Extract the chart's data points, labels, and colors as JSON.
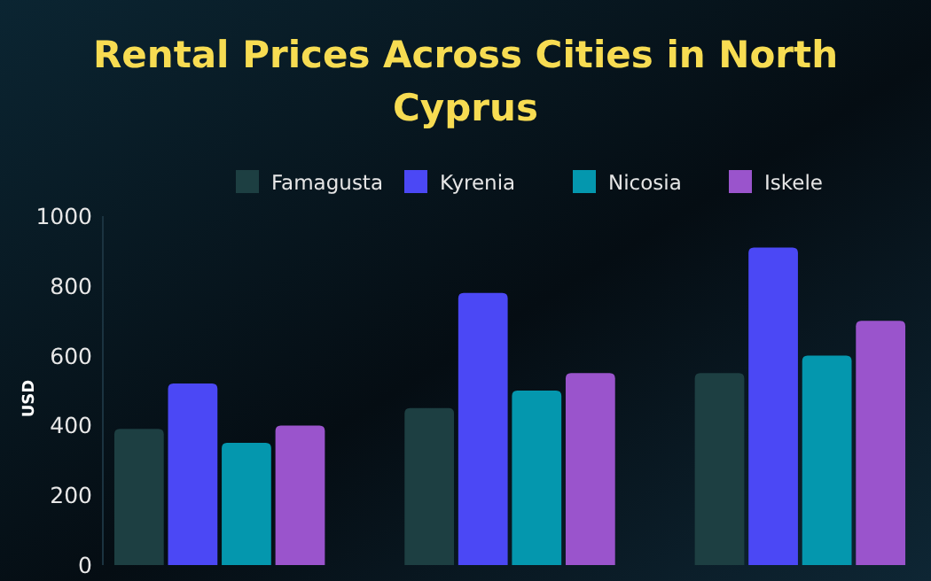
{
  "chart_data": {
    "type": "bar",
    "title": "Rental Prices Across Cities in North Cyprus",
    "ylabel": "USD",
    "categories": [
      null,
      null,
      null
    ],
    "series": [
      {
        "name": "Famagusta",
        "color": "#1d3f42",
        "values": [
          390,
          450,
          550
        ]
      },
      {
        "name": "Kyrenia",
        "color": "#4b48f5",
        "values": [
          520,
          780,
          910
        ]
      },
      {
        "name": "Nicosia",
        "color": "#0497ae",
        "values": [
          350,
          500,
          600
        ]
      },
      {
        "name": "Iskele",
        "color": "#9a54cc",
        "values": [
          400,
          550,
          700
        ]
      }
    ],
    "ylim": [
      0,
      1000
    ],
    "yticks": [
      0,
      200,
      400,
      600,
      800,
      1000
    ],
    "legend": "top"
  }
}
